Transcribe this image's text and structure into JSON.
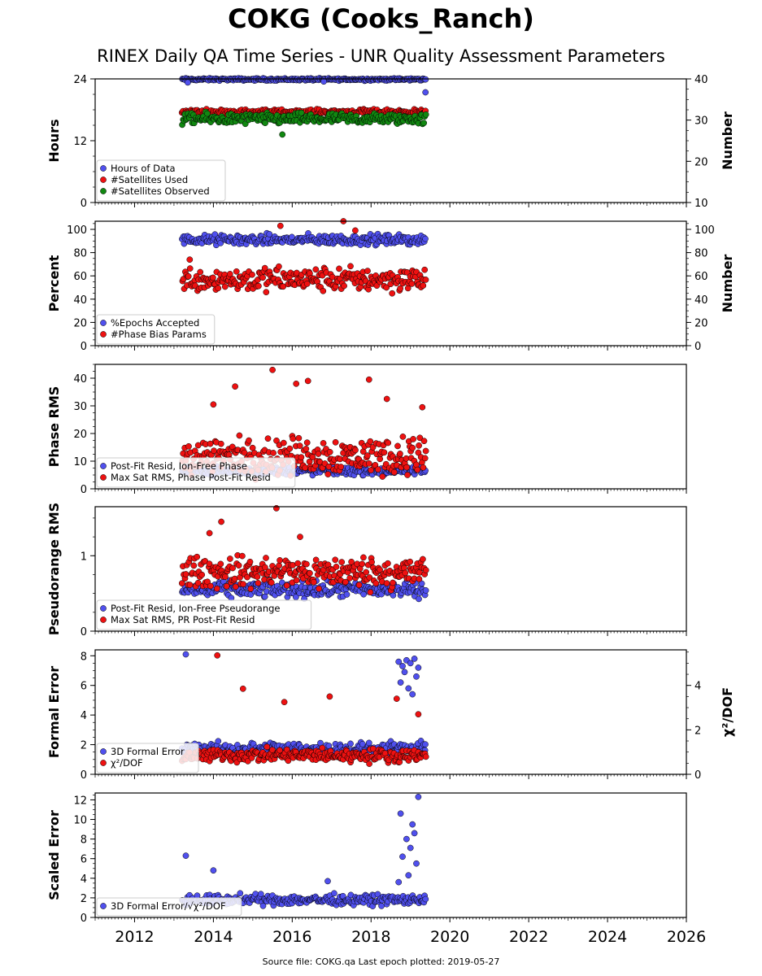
{
  "title": "COKG (Cooks_Ranch)",
  "subtitle": "RINEX Daily QA Time Series - UNR Quality Assessment Parameters",
  "footer": "Source file: COKG.qa Last epoch plotted: 2019-05-27",
  "colors": {
    "blue": "#5050ee",
    "red": "#ee1111",
    "green": "#118811",
    "edge": "#000000"
  },
  "chart_data": [
    {
      "type": "scatter",
      "ylabel": "Hours",
      "ylabel_right": "Number",
      "xlim": [
        2011.0,
        2026.0
      ],
      "xticks": [
        2012,
        2014,
        2016,
        2018,
        2020,
        2022,
        2024,
        2026
      ],
      "show_xticklabels": false,
      "ylim": [
        0,
        24
      ],
      "yticks": [
        0,
        12,
        24
      ],
      "ylim_right": [
        10,
        40
      ],
      "yticks_right": [
        10,
        20,
        30,
        40
      ],
      "legend_placement": "lower-left",
      "series": [
        {
          "name": "Hours of Data",
          "color": "blue",
          "axis": "left",
          "x_range": [
            2013.2,
            2019.4
          ],
          "base": 23.9,
          "spread": 0.15,
          "x": [
            2013.35,
            2016.8,
            2019.38
          ],
          "y": [
            23.3,
            23.5,
            21.4
          ]
        },
        {
          "name": "#Satellites Used",
          "color": "red",
          "axis": "right",
          "x_range": [
            2013.2,
            2019.4
          ],
          "base": 32,
          "spread": 0.4
        },
        {
          "name": "#Satellites Observed",
          "color": "green",
          "axis": "right",
          "x_range": [
            2013.2,
            2019.4
          ],
          "base": 30.3,
          "spread": 0.9,
          "x": [
            2015.75
          ],
          "y": [
            26.5
          ]
        }
      ]
    },
    {
      "type": "scatter",
      "ylabel": "Percent",
      "ylabel_right": "Number",
      "xlim": [
        2011.0,
        2026.0
      ],
      "xticks": [
        2012,
        2014,
        2016,
        2018,
        2020,
        2022,
        2024,
        2026
      ],
      "show_xticklabels": false,
      "ylim": [
        0,
        107
      ],
      "yticks": [
        0,
        20,
        40,
        60,
        80,
        100
      ],
      "ylim_right": [
        0,
        107
      ],
      "yticks_right": [
        0,
        20,
        40,
        60,
        80,
        100
      ],
      "legend_placement": "lower-left",
      "series": [
        {
          "name": "%Epochs Accepted",
          "color": "blue",
          "axis": "left",
          "x_range": [
            2013.2,
            2019.4
          ],
          "base": 91,
          "spread": 3
        },
        {
          "name": "#Phase Bias Params",
          "color": "red",
          "axis": "right",
          "x_range": [
            2013.2,
            2019.4
          ],
          "base": 57,
          "spread": 7,
          "x": [
            2015.7,
            2017.3,
            2017.6,
            2013.4
          ],
          "y": [
            103,
            107,
            99,
            74
          ]
        }
      ]
    },
    {
      "type": "scatter",
      "ylabel": "Phase RMS",
      "xlim": [
        2011.0,
        2026.0
      ],
      "xticks": [
        2012,
        2014,
        2016,
        2018,
        2020,
        2022,
        2024,
        2026
      ],
      "show_xticklabels": false,
      "ylim": [
        0,
        45
      ],
      "yticks": [
        0,
        10,
        20,
        30,
        40
      ],
      "legend_placement": "lower-left",
      "series": [
        {
          "name": "Post-Fit Resid, Ion-Free Phase",
          "color": "blue",
          "axis": "left",
          "x_range": [
            2013.2,
            2019.4
          ],
          "base": 6.5,
          "spread": 1.0
        },
        {
          "name": "Max Sat RMS, Phase Post-Fit Resid",
          "color": "red",
          "axis": "left",
          "x_range": [
            2013.2,
            2019.4
          ],
          "base": 12,
          "spread": 4.5,
          "x": [
            2015.5,
            2016.1,
            2016.4,
            2014.55,
            2017.95,
            2018.4,
            2014.0,
            2019.3
          ],
          "y": [
            43,
            38,
            39,
            37,
            39.5,
            32.5,
            30.5,
            29.5
          ]
        }
      ]
    },
    {
      "type": "scatter",
      "ylabel": "Pseudorange RMS",
      "xlim": [
        2011.0,
        2026.0
      ],
      "xticks": [
        2012,
        2014,
        2016,
        2018,
        2020,
        2022,
        2024,
        2026
      ],
      "show_xticklabels": false,
      "ylim": [
        0,
        1.65
      ],
      "yticks": [
        0,
        1
      ],
      "legend_placement": "lower-left",
      "series": [
        {
          "name": "Post-Fit Resid, Ion-Free Pseudorange",
          "color": "blue",
          "axis": "left",
          "x_range": [
            2013.2,
            2019.4
          ],
          "base": 0.55,
          "spread": 0.07
        },
        {
          "name": "Max Sat RMS, PR Post-Fit Resid",
          "color": "red",
          "axis": "left",
          "x_range": [
            2013.2,
            2019.4
          ],
          "base": 0.78,
          "spread": 0.14,
          "x": [
            2015.6,
            2014.2,
            2013.9,
            2016.2
          ],
          "y": [
            1.63,
            1.45,
            1.3,
            1.25
          ]
        }
      ]
    },
    {
      "type": "scatter",
      "ylabel": "Formal Error",
      "ylabel_right": "χ²/DOF",
      "xlim": [
        2011.0,
        2026.0
      ],
      "xticks": [
        2012,
        2014,
        2016,
        2018,
        2020,
        2022,
        2024,
        2026
      ],
      "show_xticklabels": false,
      "ylim": [
        0,
        8.4
      ],
      "yticks": [
        0,
        2,
        4,
        6,
        8
      ],
      "ylim_right": [
        0,
        5.6
      ],
      "yticks_right": [
        0,
        2,
        4
      ],
      "legend_placement": "lower-left",
      "series": [
        {
          "name": "3D Formal Error",
          "color": "blue",
          "axis": "left",
          "x_range": [
            2013.2,
            2019.4
          ],
          "base": 1.7,
          "spread": 0.3,
          "x": [
            2013.3,
            2018.7,
            2018.8,
            2018.9,
            2019.0,
            2019.1,
            2019.2,
            2018.75,
            2018.95,
            2019.15,
            2018.85,
            2019.05
          ],
          "y": [
            8.1,
            7.6,
            7.3,
            7.7,
            7.5,
            7.8,
            7.2,
            6.2,
            5.8,
            6.6,
            6.9,
            5.4
          ]
        },
        {
          "name": "χ²/DOF",
          "color": "red",
          "axis": "right",
          "x_range": [
            2013.2,
            2019.4
          ],
          "base": 0.85,
          "spread": 0.2,
          "x": [
            2014.1,
            2014.75,
            2015.8,
            2016.95,
            2018.65,
            2019.2
          ],
          "y": [
            5.35,
            3.85,
            3.25,
            3.5,
            3.4,
            2.7
          ]
        }
      ]
    },
    {
      "type": "scatter",
      "ylabel": "Scaled Error",
      "xlim": [
        2011.0,
        2026.0
      ],
      "xticks": [
        2012,
        2014,
        2016,
        2018,
        2020,
        2022,
        2024,
        2026
      ],
      "show_xticklabels": true,
      "ylim": [
        0,
        12.7
      ],
      "yticks": [
        0,
        2,
        4,
        6,
        8,
        10,
        12
      ],
      "legend_placement": "lower-left",
      "series": [
        {
          "name": "3D Formal Error/√χ²/DOF",
          "color": "blue",
          "axis": "left",
          "x_range": [
            2013.2,
            2019.4
          ],
          "base": 1.8,
          "spread": 0.35,
          "x": [
            2013.3,
            2014.0,
            2016.9,
            2018.75,
            2019.2,
            2018.9,
            2019.0,
            2019.1,
            2018.8,
            2019.15,
            2018.95,
            2019.05,
            2018.7
          ],
          "y": [
            6.3,
            4.8,
            3.7,
            10.6,
            12.3,
            8.0,
            7.1,
            8.6,
            6.2,
            5.5,
            4.3,
            9.5,
            3.6
          ]
        }
      ]
    }
  ]
}
